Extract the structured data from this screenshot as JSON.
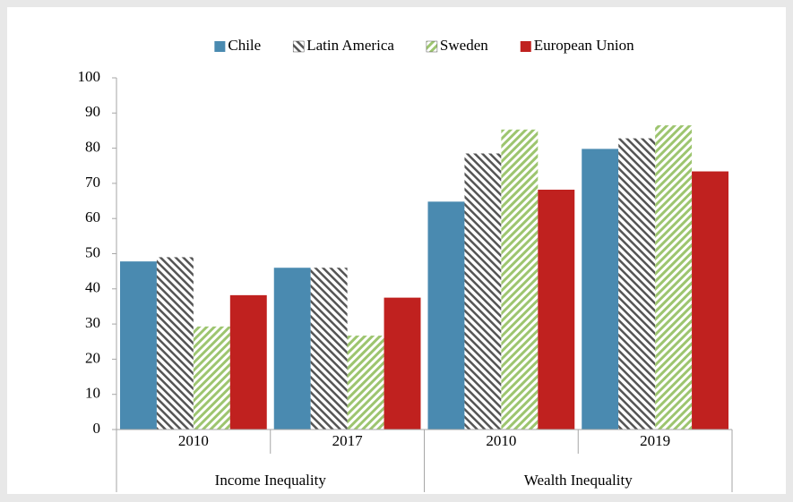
{
  "chart_data": {
    "type": "bar",
    "category_groups": [
      {
        "name": "Income Inequality",
        "categories": [
          "2010",
          "2017"
        ]
      },
      {
        "name": "Wealth Inequality",
        "categories": [
          "2010",
          "2019"
        ]
      }
    ],
    "series": [
      {
        "name": "Chile",
        "color": "#4a8ab0",
        "values": [
          47.8,
          46,
          64.8,
          79.8
        ]
      },
      {
        "name": "Latin America",
        "color": "#555555",
        "pattern": "hatch",
        "values": [
          49,
          46,
          78.5,
          82.8
        ]
      },
      {
        "name": "Sweden",
        "color": "#9dc56f",
        "pattern": "hatch",
        "values": [
          29.3,
          26.7,
          85.3,
          86.5
        ]
      },
      {
        "name": "European Union",
        "color": "#c0211f",
        "values": [
          38.2,
          37.5,
          68.2,
          73.4
        ]
      }
    ],
    "ylim": [
      0,
      100
    ],
    "yticks": [
      0,
      10,
      20,
      30,
      40,
      50,
      60,
      70,
      80,
      90,
      100
    ],
    "legend": "top"
  }
}
